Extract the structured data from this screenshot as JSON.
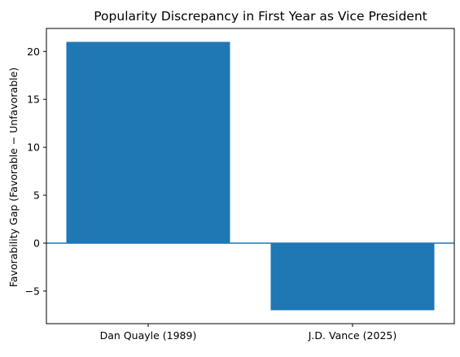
{
  "chart_data": {
    "type": "bar",
    "title": "Popularity Discrepancy in First Year as Vice President",
    "xlabel": "",
    "ylabel": "Favorability Gap (Favorable − Unfavorable)",
    "categories": [
      "Dan Quayle (1989)",
      "J.D. Vance (2025)"
    ],
    "values": [
      21,
      -7
    ],
    "ylim": [
      -8.4,
      22.4
    ],
    "yticks": [
      -5,
      0,
      5,
      10,
      15,
      20
    ],
    "ytick_labels": [
      "−5",
      "0",
      "5",
      "10",
      "15",
      "20"
    ],
    "grid": false,
    "legend": "none",
    "bar_color": "#1f77b4",
    "zero_line_color": "#1f77b4"
  }
}
